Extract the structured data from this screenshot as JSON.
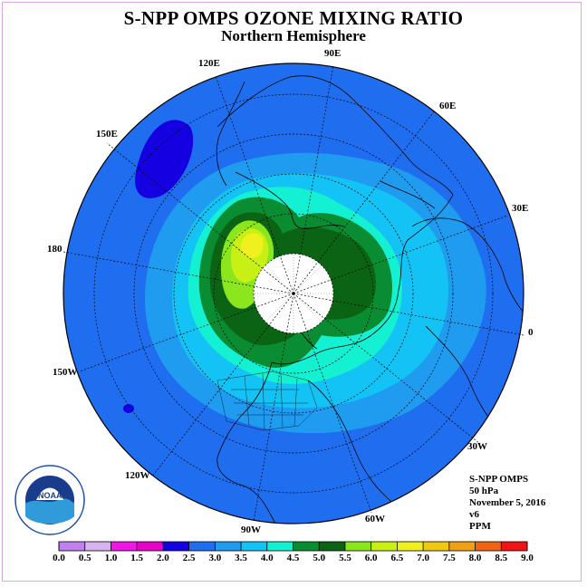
{
  "title": "S-NPP OMPS OZONE MIXING RATIO",
  "subtitle": "Northern Hemisphere",
  "longitude_labels": [
    {
      "text": "90E"
    },
    {
      "text": "60E"
    },
    {
      "text": "30E"
    },
    {
      "text": "0"
    },
    {
      "text": "30W"
    },
    {
      "text": "60W"
    },
    {
      "text": "90W"
    },
    {
      "text": "120W"
    },
    {
      "text": "150W"
    },
    {
      "text": "180"
    },
    {
      "text": "150E"
    },
    {
      "text": "120E"
    }
  ],
  "info": {
    "instrument": "S-NPP OMPS",
    "level": "50 hPa",
    "date": "November 5, 2016",
    "version": "v6",
    "units": "PPM"
  },
  "logo": {
    "text": "NOAA",
    "ring_text": "NATIONAL OCEANIC AND ATMOSPHERIC ADMINISTRATION · U.S. DEPARTMENT OF COMMERCE"
  },
  "colorbar": {
    "ticks": [
      "0.0",
      "0.5",
      "1.0",
      "1.5",
      "2.0",
      "2.5",
      "3.0",
      "3.5",
      "4.0",
      "4.5",
      "5.0",
      "5.5",
      "6.0",
      "6.5",
      "7.0",
      "7.5",
      "8.0",
      "8.5",
      "9.0"
    ],
    "colors": [
      "#bf80f0",
      "#d9b3f0",
      "#f016e6",
      "#e600c8",
      "#1400e0",
      "#1f6ef0",
      "#1f9bf0",
      "#14c3f5",
      "#14f0d2",
      "#0a8c32",
      "#0a6414",
      "#8ce61e",
      "#c8f014",
      "#f0f01e",
      "#f0c814",
      "#f0a014",
      "#f06414",
      "#f01414",
      "#8c5a3c"
    ]
  }
}
